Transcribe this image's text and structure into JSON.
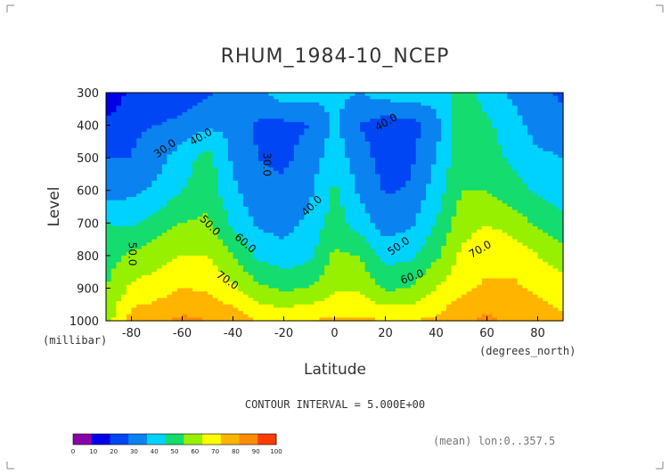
{
  "chart_data": {
    "type": "heatmap",
    "title": "RHUM_1984-10_NCEP",
    "xlabel": "Latitude",
    "ylabel": "Level",
    "x_units": "(degrees_north)",
    "y_units": "(millibar)",
    "x_ticks": [
      -80,
      -60,
      -40,
      -20,
      0,
      20,
      40,
      60,
      80
    ],
    "y_ticks": [
      300,
      400,
      500,
      600,
      700,
      800,
      900,
      1000
    ],
    "xlim": [
      -90,
      90
    ],
    "ylim": [
      1000,
      300
    ],
    "contour_interval_text": "CONTOUR INTERVAL = 5.000E+00",
    "footnote": "(mean) lon:0..357.5",
    "contour_labels": [
      "30.0",
      "40.0",
      "30.0",
      "40.0",
      "40.0",
      "50.0",
      "60.0",
      "50.0",
      "70.0",
      "60.0",
      "70.0",
      "50.0"
    ],
    "levels": [
      0,
      10,
      20,
      30,
      40,
      50,
      60,
      70,
      80,
      90,
      100
    ],
    "level_colors": [
      "#8a00a8",
      "#0000e6",
      "#0046f5",
      "#0a82f0",
      "#00d2ff",
      "#14dc6e",
      "#96f000",
      "#ffff00",
      "#ffb400",
      "#ff8c00",
      "#ff3c00"
    ],
    "lat": [
      -90,
      -80,
      -70,
      -60,
      -50,
      -40,
      -30,
      -20,
      -10,
      0,
      10,
      20,
      30,
      40,
      50,
      60,
      70,
      80,
      90
    ],
    "lev": [
      300,
      400,
      500,
      600,
      700,
      800,
      900,
      1000
    ],
    "values": [
      [
        12,
        22,
        22,
        24,
        28,
        35,
        38,
        46,
        44,
        42,
        40,
        45,
        46,
        45,
        55,
        46,
        38,
        33,
        28
      ],
      [
        22,
        28,
        30,
        33,
        38,
        38,
        28,
        27,
        30,
        42,
        30,
        24,
        26,
        36,
        56,
        52,
        44,
        36,
        33
      ],
      [
        30,
        30,
        36,
        45,
        54,
        38,
        30,
        28,
        34,
        46,
        34,
        26,
        28,
        40,
        58,
        55,
        48,
        42,
        40
      ],
      [
        35,
        38,
        42,
        50,
        56,
        42,
        33,
        32,
        38,
        52,
        38,
        29,
        31,
        45,
        60,
        60,
        54,
        48,
        45
      ],
      [
        50,
        48,
        55,
        60,
        62,
        48,
        38,
        36,
        42,
        55,
        45,
        35,
        38,
        50,
        66,
        70,
        66,
        58,
        52
      ],
      [
        55,
        62,
        66,
        70,
        70,
        60,
        48,
        44,
        48,
        62,
        60,
        46,
        48,
        58,
        72,
        76,
        76,
        70,
        65
      ],
      [
        60,
        72,
        75,
        80,
        78,
        72,
        62,
        58,
        60,
        68,
        68,
        58,
        60,
        70,
        78,
        82,
        82,
        78,
        74
      ],
      [
        65,
        85,
        88,
        92,
        90,
        86,
        80,
        78,
        80,
        82,
        82,
        80,
        80,
        82,
        88,
        92,
        88,
        86,
        82
      ]
    ]
  },
  "colorbar": {
    "tick_labels": [
      "0",
      "10",
      "20",
      "30",
      "40",
      "50",
      "60",
      "70",
      "80",
      "90",
      "100"
    ]
  }
}
